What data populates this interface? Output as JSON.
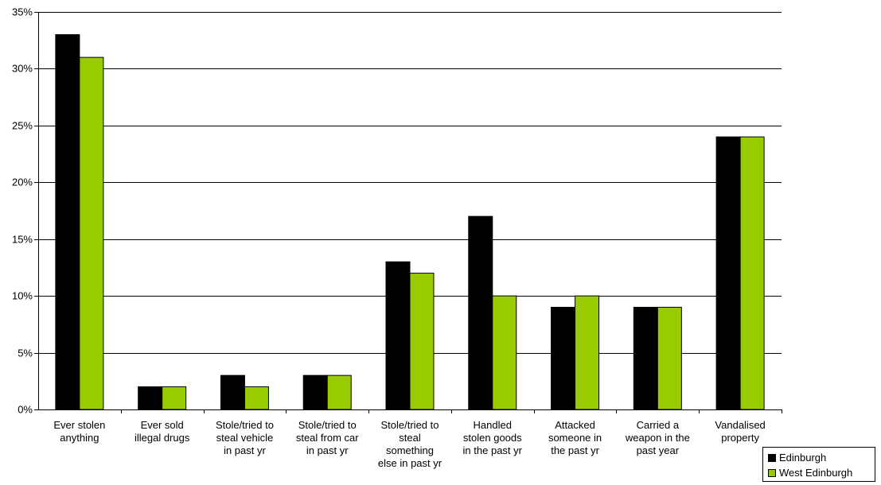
{
  "chart_data": {
    "type": "bar",
    "title": "",
    "xlabel": "",
    "ylabel": "",
    "ylim": [
      0,
      35
    ],
    "yticks": [
      "0%",
      "5%",
      "10%",
      "15%",
      "20%",
      "25%",
      "30%",
      "35%"
    ],
    "grid": true,
    "legend_position": "bottom-right",
    "categories": [
      [
        "Ever stolen",
        "anything"
      ],
      [
        "Ever sold",
        "illegal drugs"
      ],
      [
        "Stole/tried to",
        "steal vehicle",
        "in past yr"
      ],
      [
        "Stole/tried to",
        "steal from car",
        "in past yr"
      ],
      [
        "Stole/tried to",
        "steal",
        "something",
        "else in past yr"
      ],
      [
        "Handled",
        "stolen goods",
        "in the past yr"
      ],
      [
        "Attacked",
        "someone in",
        "the past yr"
      ],
      [
        "Carried a",
        "weapon in the",
        "past year"
      ],
      [
        "Vandalised",
        "property"
      ]
    ],
    "series": [
      {
        "name": "Edinburgh",
        "color": "#000000",
        "values": [
          33,
          2,
          3,
          3,
          13,
          17,
          9,
          9,
          24
        ]
      },
      {
        "name": "West Edinburgh",
        "color": "#99cc00",
        "values": [
          31,
          2,
          2,
          3,
          12,
          10,
          10,
          9,
          24
        ]
      }
    ]
  }
}
